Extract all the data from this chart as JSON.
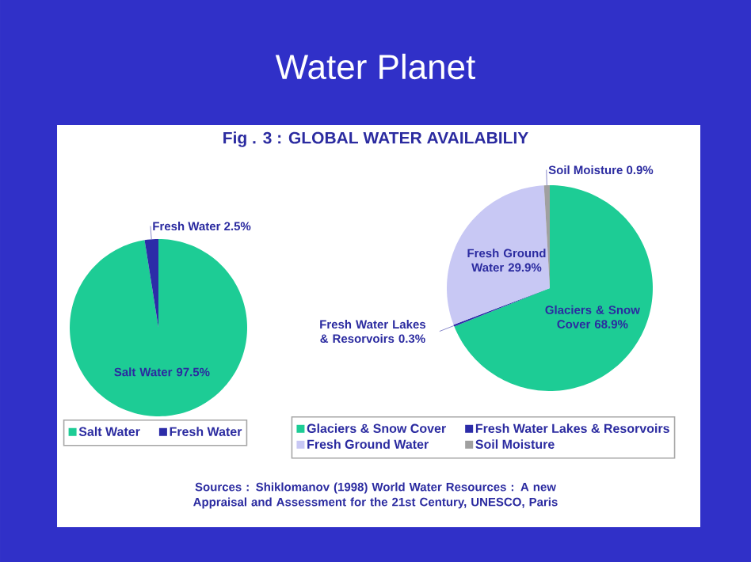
{
  "chart_data": [
    {
      "type": "pie",
      "title": "Water Planet",
      "subtitle": "Fig . 3 : GLOBAL WATER AVAILABILIY",
      "categories": [
        "Salt Water",
        "Fresh Water"
      ],
      "values": [
        97.5,
        2.5
      ],
      "value_labels": [
        "97.5%",
        "2.5%"
      ],
      "colors": [
        "#1dcc95",
        "#2c2ca8"
      ],
      "legend": "bottom"
    },
    {
      "type": "pie",
      "categories": [
        "Glaciers & Snow Cover",
        "Fresh Water Lakes & Resorvoirs",
        "Fresh Ground Water",
        "Soil Moisture"
      ],
      "values": [
        68.9,
        0.3,
        29.9,
        0.9
      ],
      "value_labels": [
        "68.9%",
        "0.3%",
        "29.9%",
        "0.9%"
      ],
      "colors": [
        "#1dcc95",
        "#2c2ca8",
        "#c8c8f4",
        "#a0a0a0"
      ],
      "legend": "bottom",
      "annotations": [
        "Sources : Shiklomanov (1998) World Water Resources : A new Appraisal and Assessment for the 21st Century, UNESCO, Paris"
      ]
    }
  ]
}
